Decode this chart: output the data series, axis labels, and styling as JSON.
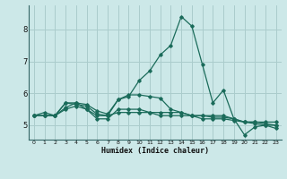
{
  "xlabel": "Humidex (Indice chaleur)",
  "background_color": "#cce8e8",
  "grid_color": "#aacccc",
  "line_color": "#1a6b5a",
  "x_ticks": [
    0,
    1,
    2,
    3,
    4,
    5,
    6,
    7,
    8,
    9,
    10,
    11,
    12,
    13,
    14,
    15,
    16,
    17,
    18,
    19,
    20,
    21,
    22,
    23
  ],
  "y_ticks": [
    5,
    6,
    7,
    8
  ],
  "ylim": [
    4.55,
    8.75
  ],
  "xlim": [
    -0.5,
    23.5
  ],
  "series": [
    {
      "x": [
        0,
        1,
        2,
        3,
        4,
        5,
        6,
        7,
        8,
        9,
        10,
        11,
        12,
        13,
        14,
        15,
        16,
        17,
        18,
        19,
        20,
        21,
        22,
        23
      ],
      "y": [
        5.3,
        5.4,
        5.3,
        5.7,
        5.7,
        5.5,
        5.3,
        5.3,
        5.8,
        5.9,
        6.4,
        6.7,
        7.2,
        7.5,
        8.4,
        8.1,
        6.9,
        5.7,
        6.1,
        5.2,
        4.7,
        4.95,
        5.0,
        4.9
      ]
    },
    {
      "x": [
        0,
        1,
        2,
        3,
        4,
        5,
        6,
        7,
        8,
        9,
        10,
        11,
        12,
        13,
        14,
        15,
        16,
        17,
        18,
        19,
        20,
        21,
        22,
        23
      ],
      "y": [
        5.3,
        5.3,
        5.3,
        5.5,
        5.6,
        5.5,
        5.2,
        5.2,
        5.5,
        5.5,
        5.5,
        5.4,
        5.4,
        5.4,
        5.4,
        5.3,
        5.3,
        5.3,
        5.3,
        5.2,
        5.1,
        5.1,
        5.1,
        5.1
      ]
    },
    {
      "x": [
        0,
        1,
        2,
        3,
        4,
        5,
        6,
        7,
        8,
        9,
        10,
        11,
        12,
        13,
        14,
        15,
        16,
        17,
        18,
        19,
        20,
        21,
        22,
        23
      ],
      "y": [
        5.3,
        5.3,
        5.3,
        5.7,
        5.65,
        5.6,
        5.35,
        5.3,
        5.4,
        5.4,
        5.4,
        5.4,
        5.3,
        5.3,
        5.3,
        5.3,
        5.2,
        5.2,
        5.2,
        5.15,
        5.1,
        5.1,
        5.05,
        5.0
      ]
    },
    {
      "x": [
        0,
        1,
        2,
        3,
        4,
        5,
        6,
        7,
        8,
        9,
        10,
        11,
        12,
        13,
        14,
        15,
        16,
        17,
        18,
        19,
        20,
        21,
        22,
        23
      ],
      "y": [
        5.3,
        5.3,
        5.3,
        5.55,
        5.7,
        5.65,
        5.45,
        5.35,
        5.8,
        5.95,
        5.95,
        5.9,
        5.85,
        5.5,
        5.4,
        5.3,
        5.3,
        5.25,
        5.25,
        5.2,
        5.1,
        5.05,
        5.0,
        5.0
      ]
    }
  ]
}
